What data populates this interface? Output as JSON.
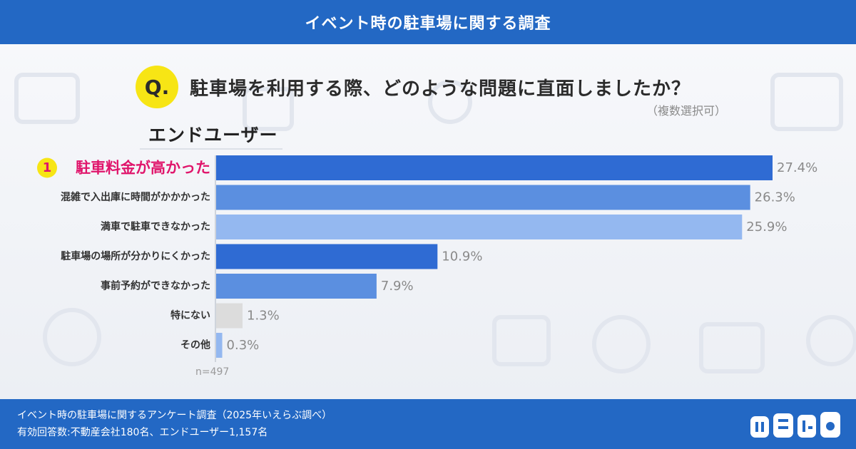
{
  "header": {
    "title": "イベント時の駐車場に関する調査"
  },
  "question": {
    "badge": "Q.",
    "text": "駐車場を利用する際、どのような問題に直面しましたか？",
    "note": "（複数選択可）"
  },
  "segment": "エンドユーザー",
  "sample_note": "n=497",
  "chart_data": {
    "type": "bar",
    "orientation": "horizontal",
    "categories": [
      "駐車料金が高かった",
      "混雑で入出庫に時間がかかかった",
      "満車で駐車できなかった",
      "駐車場の場所が分かりにくかった",
      "事前予約ができなかった",
      "特にない",
      "その他"
    ],
    "values": [
      27.4,
      26.3,
      25.9,
      10.9,
      7.9,
      1.3,
      0.3
    ],
    "value_labels": [
      "27.4%",
      "26.3%",
      "25.9%",
      "10.9%",
      "7.9%",
      "1.3%",
      "0.3%"
    ],
    "rank_badge": "1",
    "highlight_index": 0,
    "colors": [
      "#2f6bd3",
      "#5b8fe0",
      "#94b8f0",
      "#2f6bd3",
      "#5b8fe0",
      "#dcdcdc",
      "#94b8f0"
    ],
    "highlight_color": "#e0156b",
    "xlim": [
      0,
      27.4
    ],
    "grid": false
  },
  "footer": {
    "line1": "イベント時の駐車場に関するアンケート調査（2025年いえらぶ調べ）",
    "line2": "有効回答数:不動産会社180名、エンドユーザー1,157名",
    "logo": "いえらぶ"
  }
}
